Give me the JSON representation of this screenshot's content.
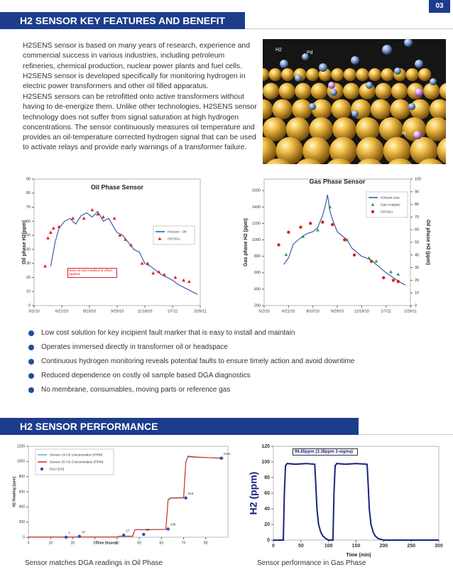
{
  "page_number": "03",
  "sections": [
    {
      "heading": "H2 SENSOR KEY FEATURES AND BENEFIT",
      "paragraphs": [
        "H2SENS sensor is based on many years of research, experience and commercial success in various industries, including petroleum refineries, chemical production, nuclear power plants and fuel cells. H2SENS sensor is developed specifically for monitoring hydrogen in electric power transformers and other oil filled apparatus.",
        "H2SENS sensors can be retrofitted onto active transformers without having to de-energize them. Unlike other technologies, H2SENS sensor technology does not suffer from signal saturation at high hydrogen concentrations. The sensor continuously measures oil temperature and provides an oil-temperature corrected hydrogen signal that can be used to activate relays and provide early warnings of a transformer failure."
      ],
      "bullets": [
        "Low cost solution for key incipient fault marker that is easy to install and maintain",
        "Operates immersed directly in transformer oil or headspace",
        "Continuous hydrogen monitoring reveals potential faults to ensure timely action and avoid downtime",
        "Reduced dependence on costly oil sample based DGA diagnostics",
        "No membrane, consumables, moving parts or reference gas"
      ]
    },
    {
      "heading": "H2 SENSOR PERFORMANCE",
      "captions": [
        "Sensor matches DGA readings in Oil Phase",
        "Sensor performance in Gas Phase"
      ]
    }
  ],
  "image": {
    "labels": [
      "H2",
      "Pd",
      "H"
    ]
  },
  "chart_data": [
    {
      "type": "line",
      "title": "Oil Phase Sensor",
      "y_label": "Oil phase H2(ppm)",
      "annotation": "New oil unit installed & offset applied.",
      "xlim": [
        0,
        300
      ],
      "xticks": [
        {
          "value": 0,
          "label": "5/2/10"
        },
        {
          "value": 50,
          "label": "6/21/10"
        },
        {
          "value": 100,
          "label": "8/10/10"
        },
        {
          "value": 150,
          "label": "9/29/10"
        },
        {
          "value": 200,
          "label": "11/18/10"
        },
        {
          "value": 250,
          "label": "1/7/11"
        },
        {
          "value": 300,
          "label": "2/26/11"
        }
      ],
      "ylim": [
        0,
        90
      ],
      "yticks": [
        0,
        10,
        20,
        30,
        40,
        50,
        60,
        70,
        80,
        90
      ],
      "legend": "right",
      "series": [
        {
          "name": "H2scan - Oil",
          "color": "#2e4fa3",
          "x": [
            30,
            38,
            45,
            55,
            65,
            75,
            85,
            95,
            105,
            115,
            125,
            135,
            145,
            150,
            160,
            170,
            180,
            190,
            200,
            210,
            220,
            230,
            240,
            250,
            260,
            270,
            280,
            290,
            295
          ],
          "values": [
            28,
            45,
            55,
            60,
            62,
            58,
            64,
            66,
            63,
            67,
            60,
            62,
            55,
            52,
            50,
            45,
            40,
            38,
            30,
            28,
            25,
            22,
            20,
            18,
            15,
            13,
            11,
            9,
            8
          ]
        },
        {
          "name": "Oil DGA",
          "color": "#e02020",
          "marker": "triangle",
          "x": [
            20,
            25,
            30,
            35,
            45,
            70,
            90,
            105,
            115,
            125,
            145,
            155,
            165,
            175,
            195,
            205,
            215,
            225,
            235,
            255,
            270,
            280
          ],
          "values": [
            28,
            48,
            52,
            55,
            56,
            62,
            62,
            68,
            65,
            63,
            62,
            50,
            47,
            43,
            30,
            30,
            23,
            24,
            22,
            20,
            18,
            17
          ]
        }
      ]
    },
    {
      "type": "line",
      "title": "Gas Phase Sensor",
      "y_label": "Gas phase H2 (ppm)",
      "y2_label": "Oil phase H2 (ppm)",
      "xlim": [
        0,
        300
      ],
      "xticks": [
        {
          "value": 0,
          "label": "5/2/10"
        },
        {
          "value": 50,
          "label": "6/21/10"
        },
        {
          "value": 100,
          "label": "8/10/10"
        },
        {
          "value": 150,
          "label": "9/29/10"
        },
        {
          "value": 200,
          "label": "11/18/10"
        },
        {
          "value": 250,
          "label": "1/7/11"
        },
        {
          "value": 300,
          "label": "2/26/11"
        }
      ],
      "ylim": [
        200,
        1740
      ],
      "yticks": [
        200,
        400,
        600,
        800,
        1000,
        1200,
        1400,
        1600
      ],
      "y2lim": [
        0,
        100
      ],
      "y2ticks": [
        0,
        10,
        20,
        30,
        40,
        50,
        60,
        70,
        80,
        90,
        100
      ],
      "legend": "top-right",
      "series": [
        {
          "name": "H2scan-Gas",
          "color": "#2e4fa3",
          "x": [
            40,
            50,
            60,
            70,
            80,
            90,
            100,
            110,
            120,
            125,
            130,
            135,
            140,
            150,
            160,
            170,
            180,
            190,
            200,
            210,
            220,
            230,
            240,
            250,
            260,
            270,
            280,
            290
          ],
          "values": [
            700,
            780,
            950,
            1000,
            1050,
            1080,
            1100,
            1150,
            1300,
            1400,
            1550,
            1350,
            1250,
            1100,
            1050,
            1000,
            900,
            850,
            800,
            780,
            750,
            700,
            650,
            600,
            560,
            520,
            480,
            450
          ]
        },
        {
          "name": "Gas Analysis",
          "color": "#2ca05a",
          "marker": "triangle",
          "x": [
            45,
            80,
            110,
            135,
            170,
            215,
            230,
            260,
            275
          ],
          "values": [
            820,
            1040,
            1120,
            1400,
            1000,
            780,
            740,
            610,
            580
          ]
        },
        {
          "name": "Oil DGA",
          "color": "#e02020",
          "marker": "circle",
          "axis": "y2",
          "x": [
            30,
            50,
            75,
            95,
            120,
            140,
            165,
            185,
            220,
            245,
            265,
            275
          ],
          "values": [
            48,
            58,
            62,
            65,
            66,
            64,
            52,
            40,
            35,
            22,
            20,
            19
          ]
        }
      ]
    },
    {
      "type": "line",
      "y_label": "H2 Reading [ppm]",
      "x_label": "Time (hours)",
      "xlim": [
        0,
        90
      ],
      "xticks": [
        0,
        10,
        20,
        30,
        40,
        50,
        60,
        70,
        80
      ],
      "ylim": [
        0,
        1200
      ],
      "yticks": [
        0,
        200,
        400,
        600,
        800,
        1000,
        1200
      ],
      "legend": "top-left",
      "series": [
        {
          "name": "Sensor 19 H2 concentration (PPM)",
          "color": "#4fb8d8",
          "x": [
            0,
            40,
            41,
            47,
            48,
            62,
            63,
            64,
            70,
            71,
            72,
            75,
            88
          ],
          "values": [
            5,
            5,
            15,
            15,
            100,
            105,
            500,
            520,
            525,
            1000,
            1060,
            1055,
            1045
          ]
        },
        {
          "name": "Sensor 20 H2 Concentration (PPM)",
          "color": "#d8281e",
          "x": [
            0,
            40,
            41,
            47,
            48,
            62,
            63,
            64,
            70,
            71,
            72,
            75,
            88
          ],
          "values": [
            3,
            3,
            12,
            12,
            98,
            102,
            490,
            515,
            518,
            990,
            1070,
            1060,
            1040
          ]
        },
        {
          "name": "DGA [H2]",
          "color": "#2a4fb0",
          "marker": "circle",
          "point_labels": true,
          "x": [
            17,
            23,
            43,
            52,
            63,
            71,
            87
          ],
          "values": [
            1,
            12,
            27,
            38,
            108,
            518,
            1044
          ]
        }
      ]
    },
    {
      "type": "line",
      "y_label": "H2 (ppm)",
      "x_label": "Time (min)",
      "annotation": "96.85ppm (3.38ppm 3-sigma)",
      "xlim": [
        0,
        300
      ],
      "xticks": [
        0,
        50,
        100,
        150,
        200,
        250,
        300
      ],
      "ylim": [
        0,
        120
      ],
      "yticks": [
        0,
        20,
        40,
        60,
        80,
        100,
        120
      ],
      "series": [
        {
          "color": "#1a237e",
          "x": [
            0,
            10,
            18,
            20,
            22,
            25,
            40,
            60,
            75,
            77,
            79,
            82,
            86,
            90,
            95,
            100,
            108,
            110,
            112,
            115,
            130,
            150,
            170,
            172,
            174,
            177,
            181,
            185,
            190,
            200,
            250,
            300
          ],
          "values": [
            0,
            0,
            0,
            60,
            95,
            98,
            97,
            98,
            97,
            70,
            40,
            20,
            10,
            5,
            2,
            0,
            0,
            60,
            95,
            98,
            97,
            98,
            97,
            70,
            40,
            20,
            10,
            5,
            2,
            0,
            0,
            0
          ]
        }
      ]
    }
  ]
}
